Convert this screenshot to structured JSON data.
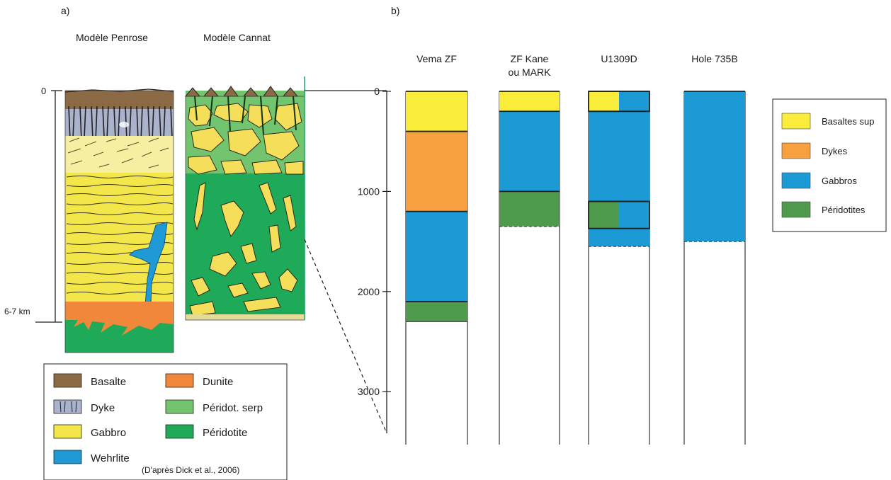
{
  "panel_a": {
    "label": "a)",
    "model_penrose": "Modèle Penrose",
    "model_cannat": "Modèle Cannat",
    "depth_top": "0",
    "depth_bottom": "6-7 km",
    "legend": [
      {
        "key": "basalte",
        "label": "Basalte",
        "color": "#8c6a45"
      },
      {
        "key": "dyke",
        "label": "Dyke",
        "color": "#aab2cc"
      },
      {
        "key": "gabbro",
        "label": "Gabbro",
        "color": "#f2e64a"
      },
      {
        "key": "wehrlite",
        "label": "Wehrlite",
        "color": "#1f9ad6"
      },
      {
        "key": "dunite",
        "label": "Dunite",
        "color": "#f0873a"
      },
      {
        "key": "peridot_serp",
        "label": "Péridot. serp",
        "color": "#73c46e"
      },
      {
        "key": "peridotite",
        "label": "Péridotite",
        "color": "#1faa5a"
      }
    ],
    "credit": "(D'après Dick et al., 2006)"
  },
  "panel_b": {
    "label": "b)",
    "columns": [
      {
        "name_lines": [
          "Vema ZF"
        ]
      },
      {
        "name_lines": [
          "ZF Kane",
          "ou MARK"
        ]
      },
      {
        "name_lines": [
          "U1309D"
        ]
      },
      {
        "name_lines": [
          "Hole 735B"
        ]
      }
    ],
    "depth_ticks": [
      "0",
      "1000",
      "2000",
      "3000"
    ],
    "legend": [
      {
        "key": "basaltes",
        "label": "Basaltes sup",
        "color": "#f9ec3b"
      },
      {
        "key": "dykes",
        "label": "Dykes",
        "color": "#f6a040"
      },
      {
        "key": "gabbros",
        "label": "Gabbros",
        "color": "#1c9ad6"
      },
      {
        "key": "peridotites",
        "label": "Péridotites",
        "color": "#4f9a4d"
      }
    ]
  },
  "chart_data": {
    "type": "stacked-column",
    "y_unit": "depth",
    "ylim": [
      0,
      3500
    ],
    "columns": [
      {
        "name": "Vema ZF",
        "segments": [
          {
            "lith": "basaltes",
            "from": 0,
            "to": 400
          },
          {
            "lith": "dykes",
            "from": 400,
            "to": 1200
          },
          {
            "lith": "gabbros",
            "from": 1200,
            "to": 2100
          },
          {
            "lith": "peridotites",
            "from": 2100,
            "to": 2300
          }
        ]
      },
      {
        "name": "ZF Kane ou MARK",
        "segments": [
          {
            "lith": "basaltes",
            "from": 0,
            "to": 200
          },
          {
            "lith": "gabbros",
            "from": 200,
            "to": 1000
          },
          {
            "lith": "peridotites",
            "from": 1000,
            "to": 1350
          }
        ]
      },
      {
        "name": "U1309D",
        "segments": [
          {
            "lith": "basaltes",
            "from": 0,
            "to": 200,
            "share": 0.5
          },
          {
            "lith": "gabbros",
            "from": 0,
            "to": 200,
            "share": 0.5,
            "offset": 0.5
          },
          {
            "lith": "gabbros",
            "from": 200,
            "to": 1100
          },
          {
            "lith": "peridotites",
            "from": 1100,
            "to": 1370,
            "share": 0.5
          },
          {
            "lith": "gabbros",
            "from": 1100,
            "to": 1370,
            "share": 0.5,
            "offset": 0.5
          },
          {
            "lith": "gabbros",
            "from": 1370,
            "to": 1550
          }
        ]
      },
      {
        "name": "Hole 735B",
        "segments": [
          {
            "lith": "gabbros",
            "from": 0,
            "to": 1500
          }
        ]
      }
    ]
  }
}
